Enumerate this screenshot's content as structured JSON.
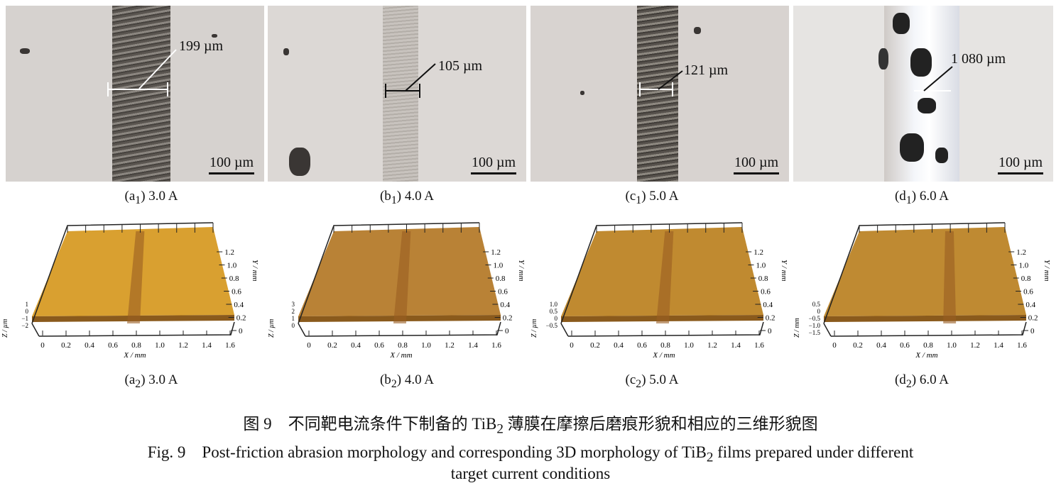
{
  "panels_top": [
    {
      "label": "(a",
      "sub": "1",
      "current": "3.0 A",
      "width": "199 µm",
      "scale": "100 µm"
    },
    {
      "label": "(b",
      "sub": "1",
      "current": "4.0 A",
      "width": "105 µm",
      "scale": "100 µm"
    },
    {
      "label": "(c",
      "sub": "1",
      "current": "5.0 A",
      "width": "121 µm",
      "scale": "100 µm"
    },
    {
      "label": "(d",
      "sub": "1",
      "current": "6.0 A",
      "width": "1 080 µm",
      "scale": "100 µm"
    }
  ],
  "panels_3d": [
    {
      "label": "(a",
      "sub": "2",
      "current": "3.0 A",
      "x_label": "X / mm",
      "y_label": "Y / mm",
      "z_label": "Z / µm",
      "x_ticks": [
        "0",
        "0.2",
        "0.4",
        "0.6",
        "0.8",
        "1.0",
        "1.2",
        "1.4",
        "1.6"
      ],
      "y_ticks": [
        "0",
        "0.2",
        "0.4",
        "0.6",
        "0.8",
        "1.0",
        "1.2"
      ],
      "z_ticks": [
        "1",
        "0",
        "−1",
        "−2"
      ],
      "surface_color": "#d9a030"
    },
    {
      "label": "(b",
      "sub": "2",
      "current": "4.0 A",
      "x_label": "X / mm",
      "y_label": "Y / mm",
      "z_label": "Z / µm",
      "x_ticks": [
        "0",
        "0.2",
        "0.4",
        "0.6",
        "0.8",
        "1.0",
        "1.2",
        "1.4",
        "1.6"
      ],
      "y_ticks": [
        "0",
        "0.2",
        "0.4",
        "0.6",
        "0.8",
        "1.0",
        "1.2"
      ],
      "z_ticks": [
        "3",
        "2",
        "1",
        "0"
      ],
      "surface_color": "#b98236"
    },
    {
      "label": "(c",
      "sub": "2",
      "current": "5.0 A",
      "x_label": "X / mm",
      "y_label": "Y / mm",
      "z_label": "Z / µm",
      "x_ticks": [
        "0",
        "0.2",
        "0.4",
        "0.6",
        "0.8",
        "1.0",
        "1.2",
        "1.4",
        "1.6"
      ],
      "y_ticks": [
        "0",
        "0.2",
        "0.4",
        "0.6",
        "0.8",
        "1.0",
        "1.2"
      ],
      "z_ticks": [
        "1.0",
        "0.5",
        "0",
        "−0.5"
      ],
      "surface_color": "#c08a30"
    },
    {
      "label": "(d",
      "sub": "2",
      "current": "6.0 A",
      "x_label": "X / mm",
      "y_label": "Y / mm",
      "z_label": "Z / mm",
      "x_ticks": [
        "0",
        "0.2",
        "0.4",
        "0.6",
        "0.8",
        "1.0",
        "1.2",
        "1.4",
        "1.6"
      ],
      "y_ticks": [
        "0",
        "0.2",
        "0.4",
        "0.6",
        "0.8",
        "1.0",
        "1.2"
      ],
      "z_ticks": [
        "0.5",
        "0",
        "−0.5",
        "−1.0",
        "−1.5"
      ],
      "surface_color": "#bf8a32"
    }
  ],
  "caption_cn_pre": "图 9　不同靶电流条件下制备的 TiB",
  "caption_cn_sub": "2",
  "caption_cn_post": " 薄膜在摩擦后磨痕形貌和相应的三维形貌图",
  "caption_en_pre": "Fig. 9　Post-friction abrasion morphology and corresponding 3D morphology of TiB",
  "caption_en_sub": "2",
  "caption_en_post": " films prepared under different",
  "caption_en_line2": "target current conditions"
}
